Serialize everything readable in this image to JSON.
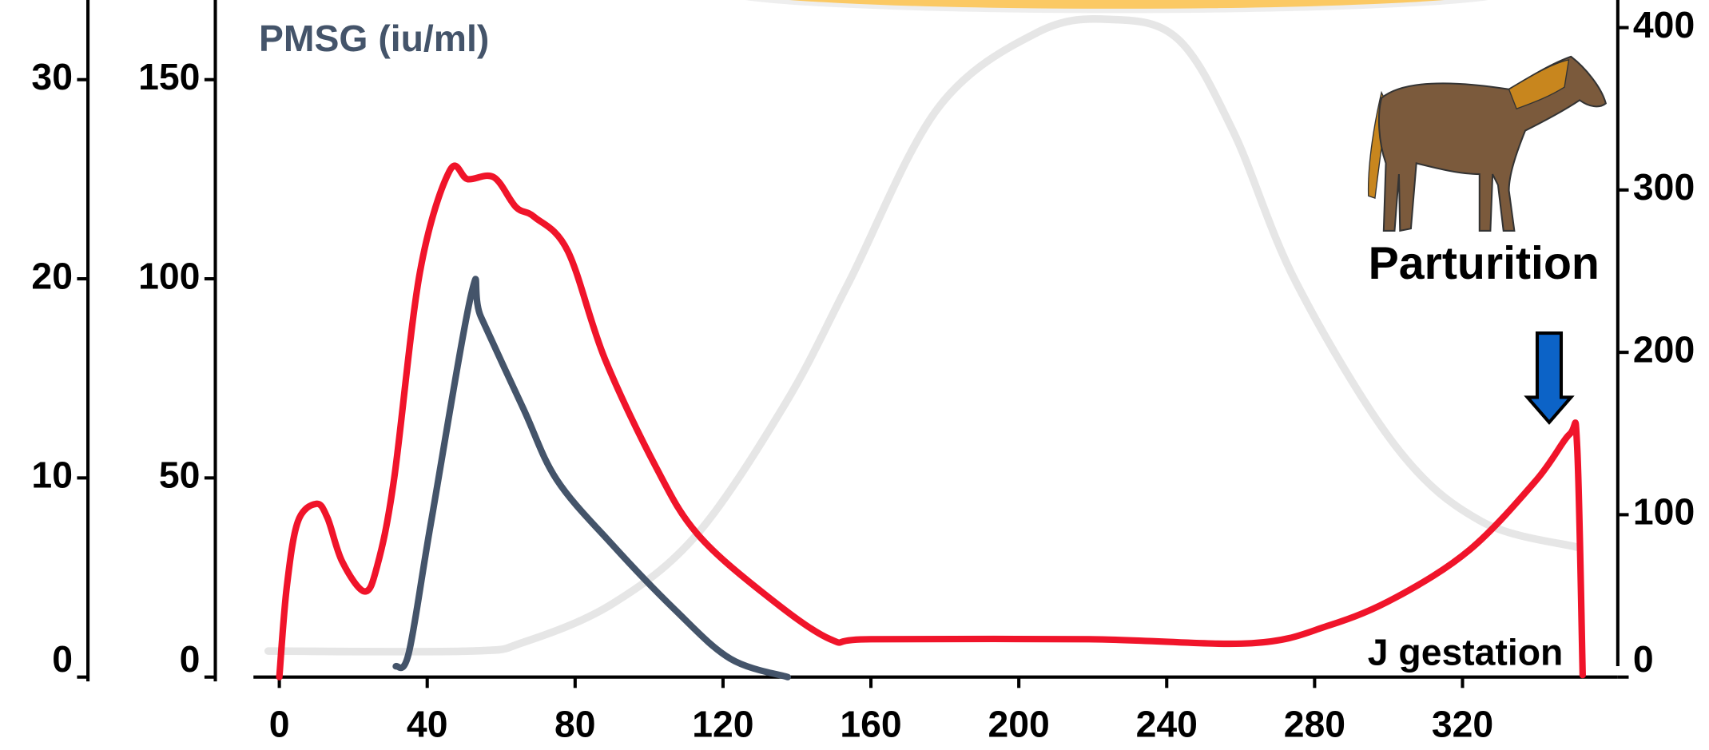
{
  "chart_data": {
    "type": "line",
    "xlabel": "J gestation",
    "annotation": "Parturition",
    "xlim": [
      -7,
      362
    ],
    "xticks": [
      0,
      40,
      80,
      120,
      160,
      200,
      240,
      280,
      320
    ],
    "ylim": [
      0,
      34
    ],
    "yticks": [
      0,
      10,
      20,
      30
    ],
    "y3lim": [
      0,
      170
    ],
    "y3ticks": [
      0,
      50,
      100,
      150
    ],
    "y2lim": [
      0,
      417
    ],
    "y2ticks": [
      0,
      100,
      200,
      300,
      400
    ],
    "grid": false,
    "series": [
      {
        "color": "#f0142a",
        "axis": "y",
        "x": [
          0,
          2,
          5,
          10,
          13,
          17,
          23,
          26.5,
          31,
          38,
          46,
          51,
          58,
          64,
          69,
          78,
          88,
          102,
          113,
          131,
          149,
          160,
          219,
          263,
          284,
          302,
          322,
          340,
          349,
          351,
          352.5
        ],
        "values": [
          0,
          4.5,
          7.8,
          8.7,
          8.0,
          5.8,
          4.3,
          5.6,
          9.9,
          20.3,
          25.4,
          25.0,
          25.1,
          23.6,
          23.1,
          21.4,
          16.0,
          10.5,
          7.2,
          4.2,
          1.9,
          1.9,
          1.9,
          1.7,
          2.6,
          4.0,
          6.4,
          9.9,
          12.2,
          11.6,
          0.1
        ]
      },
      {
        "name": "PMSG (iu/ml)",
        "color": "#44546a",
        "axis": "y3",
        "x": [
          31.5,
          35,
          41,
          52,
          54.5,
          66,
          75,
          90,
          107,
          122,
          137.5
        ],
        "values": [
          2.7,
          6,
          38.7,
          96.5,
          90.5,
          67.4,
          49.6,
          33.3,
          16.9,
          4.6,
          0
        ]
      },
      {
        "color": "#e6e6e6",
        "axis": "y2",
        "x": [
          -3,
          51.5,
          66,
          90,
          113,
          137,
          154,
          178,
          205,
          225,
          243,
          258,
          275,
          302,
          325,
          351
        ],
        "values": [
          16,
          16,
          21.4,
          45,
          88,
          169,
          243,
          350,
          397,
          405,
          393,
          336,
          243,
          142,
          96,
          80
        ]
      }
    ]
  }
}
